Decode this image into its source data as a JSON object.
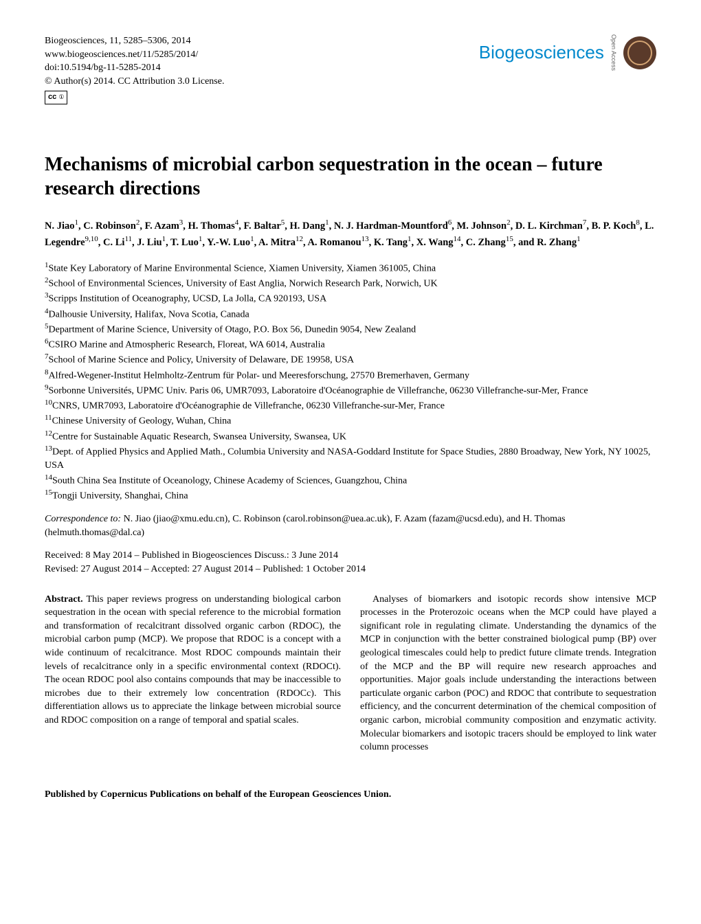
{
  "header": {
    "citation": "Biogeosciences, 11, 5285–5306, 2014",
    "url": "www.biogeosciences.net/11/5285/2014/",
    "doi": "doi:10.5194/bg-11-5285-2014",
    "copyright": "© Author(s) 2014. CC Attribution 3.0 License.",
    "journal_name": "Biogeosciences",
    "open_access": "Open Access",
    "cc_text": "CC BY"
  },
  "title": "Mechanisms of microbial carbon sequestration in the ocean – future research directions",
  "authors_html": "N. Jiao<sup>1</sup>, C. Robinson<sup>2</sup>, F. Azam<sup>3</sup>, H. Thomas<sup>4</sup>, F. Baltar<sup>5</sup>, H. Dang<sup>1</sup>, N. J. Hardman-Mountford<sup>6</sup>, M. Johnson<sup>2</sup>, D. L. Kirchman<sup>7</sup>, B. P. Koch<sup>8</sup>, L. Legendre<sup>9,10</sup>, C. Li<sup>11</sup>, J. Liu<sup>1</sup>, T. Luo<sup>1</sup>, Y.-W. Luo<sup>1</sup>, A. Mitra<sup>12</sup>, A. Romanou<sup>13</sup>, K. Tang<sup>1</sup>, X. Wang<sup>14</sup>, C. Zhang<sup>15</sup>, and R. Zhang<sup>1</sup>",
  "affiliations": [
    "State Key Laboratory of Marine Environmental Science, Xiamen University, Xiamen 361005, China",
    "School of Environmental Sciences, University of East Anglia, Norwich Research Park, Norwich, UK",
    "Scripps Institution of Oceanography, UCSD, La Jolla, CA 920193, USA",
    "Dalhousie University, Halifax, Nova Scotia, Canada",
    "Department of Marine Science, University of Otago, P.O. Box 56, Dunedin 9054, New Zealand",
    "CSIRO Marine and Atmospheric Research, Floreat, WA 6014, Australia",
    "School of Marine Science and Policy, University of Delaware, DE 19958, USA",
    "Alfred-Wegener-Institut Helmholtz-Zentrum für Polar- und Meeresforschung, 27570 Bremerhaven, Germany",
    "Sorbonne Universités, UPMC Univ. Paris 06, UMR7093, Laboratoire d'Océanographie de Villefranche, 06230 Villefranche-sur-Mer, France",
    "CNRS, UMR7093, Laboratoire d'Océanographie de Villefranche, 06230 Villefranche-sur-Mer, France",
    "Chinese University of Geology, Wuhan, China",
    "Centre for Sustainable Aquatic Research, Swansea University, Swansea, UK",
    "Dept. of Applied Physics and Applied Math., Columbia University and NASA-Goddard Institute for Space Studies, 2880 Broadway, New York, NY 10025, USA",
    "South China Sea Institute of Oceanology, Chinese Academy of Sciences, Guangzhou, China",
    "Tongji University, Shanghai, China"
  ],
  "correspondence": {
    "label": "Correspondence to:",
    "text": "N. Jiao (jiao@xmu.edu.cn), C. Robinson (carol.robinson@uea.ac.uk), F. Azam (fazam@ucsd.edu), and H. Thomas (helmuth.thomas@dal.ca)"
  },
  "dates": {
    "line1": "Received: 8 May 2014 – Published in Biogeosciences Discuss.: 3 June 2014",
    "line2": "Revised: 27 August 2014 – Accepted: 27 August 2014 – Published: 1 October 2014"
  },
  "abstract": {
    "label": "Abstract.",
    "col1": "This paper reviews progress on understanding biological carbon sequestration in the ocean with special reference to the microbial formation and transformation of recalcitrant dissolved organic carbon (RDOC), the microbial carbon pump (MCP). We propose that RDOC is a concept with a wide continuum of recalcitrance. Most RDOC compounds maintain their levels of recalcitrance only in a specific environmental context (RDOCt). The ocean RDOC pool also contains compounds that may be inaccessible to microbes due to their extremely low concentration (RDOCc). This differentiation allows us to appreciate the linkage between microbial source and RDOC composition on a range of temporal and spatial scales.",
    "col2_p1": "Analyses of biomarkers and isotopic records show intensive MCP processes in the Proterozoic oceans when the MCP could have played a significant role in regulating climate. Understanding the dynamics of the MCP in conjunction with the better constrained biological pump (BP) over geological timescales could help to predict future climate trends. Integration of the MCP and the BP will require new research approaches and opportunities. Major goals include understanding the interactions between particulate organic carbon (POC) and RDOC that contribute to sequestration efficiency, and the concurrent determination of the chemical composition of organic carbon, microbial community composition and enzymatic activity. Molecular biomarkers and isotopic tracers should be employed to link water column processes"
  },
  "footer": "Published by Copernicus Publications on behalf of the European Geosciences Union.",
  "colors": {
    "journal_blue": "#0088cc",
    "badge_brown": "#5a3a2a",
    "badge_gold": "#d4a574",
    "text": "#000000",
    "background": "#ffffff"
  }
}
